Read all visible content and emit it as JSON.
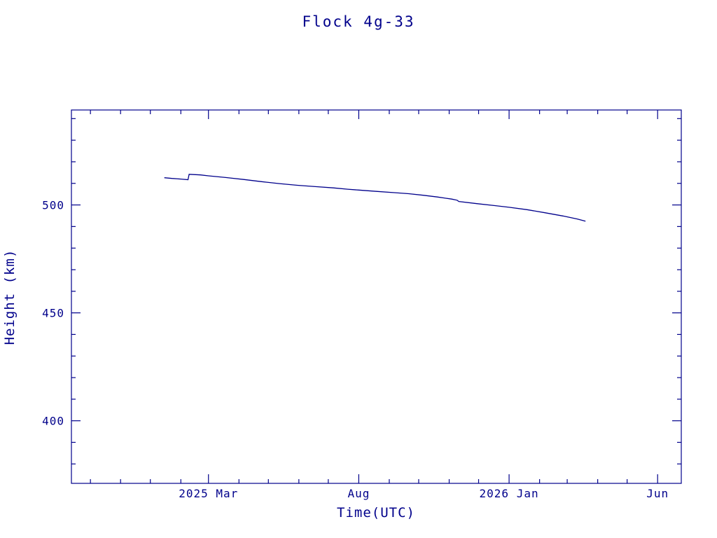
{
  "colors": {
    "accent": "#00008B",
    "background": "#ffffff",
    "line": "#00008B"
  },
  "chart_data": {
    "type": "line",
    "title": "Flock 4g-33",
    "xlabel": "Time(UTC)",
    "ylabel": "Height (km)",
    "xlim": [
      2024.78,
      2026.48
    ],
    "ylim": [
      371,
      544
    ],
    "grid": false,
    "legend": "none",
    "x_ticks_major": [
      {
        "x": 2025.162,
        "label": "2025 Mar"
      },
      {
        "x": 2025.581,
        "label": "Aug"
      },
      {
        "x": 2026.0,
        "label": "2026 Jan"
      },
      {
        "x": 2026.414,
        "label": "Jun"
      }
    ],
    "x_ticks_minor": [
      2024.833,
      2024.917,
      2025.0,
      2025.085,
      2025.247,
      2025.329,
      2025.414,
      2025.496,
      2025.666,
      2025.748,
      2025.833,
      2025.915,
      2026.085,
      2026.162,
      2026.247,
      2026.329
    ],
    "y_ticks_major": [
      {
        "y": 400,
        "label": "400"
      },
      {
        "y": 450,
        "label": "450"
      },
      {
        "y": 500,
        "label": "500"
      }
    ],
    "y_ticks_minor": [
      380,
      390,
      410,
      420,
      430,
      440,
      460,
      470,
      480,
      490,
      510,
      520,
      530,
      540
    ],
    "series": [
      {
        "name": "height",
        "color": "#00008B",
        "points": [
          [
            2025.039,
            512.6
          ],
          [
            2025.06,
            512.3
          ],
          [
            2025.085,
            512.0
          ],
          [
            2025.105,
            511.7
          ],
          [
            2025.108,
            514.2
          ],
          [
            2025.14,
            513.9
          ],
          [
            2025.162,
            513.5
          ],
          [
            2025.21,
            512.7
          ],
          [
            2025.26,
            511.8
          ],
          [
            2025.31,
            510.8
          ],
          [
            2025.36,
            509.9
          ],
          [
            2025.41,
            509.1
          ],
          [
            2025.46,
            508.5
          ],
          [
            2025.51,
            507.9
          ],
          [
            2025.55,
            507.3
          ],
          [
            2025.581,
            506.9
          ],
          [
            2025.63,
            506.3
          ],
          [
            2025.68,
            505.7
          ],
          [
            2025.72,
            505.2
          ],
          [
            2025.76,
            504.5
          ],
          [
            2025.8,
            503.7
          ],
          [
            2025.84,
            502.7
          ],
          [
            2025.855,
            502.2
          ],
          [
            2025.86,
            501.6
          ],
          [
            2025.91,
            500.6
          ],
          [
            2025.96,
            499.7
          ],
          [
            2026.0,
            498.9
          ],
          [
            2026.05,
            497.8
          ],
          [
            2026.1,
            496.4
          ],
          [
            2026.15,
            494.9
          ],
          [
            2026.19,
            493.5
          ],
          [
            2026.213,
            492.5
          ]
        ]
      }
    ]
  }
}
